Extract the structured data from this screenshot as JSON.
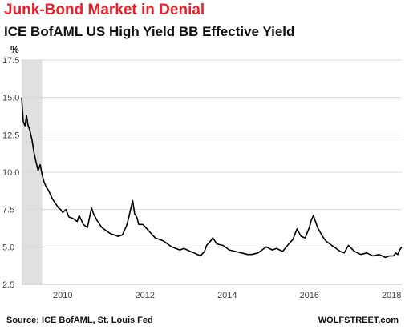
{
  "header": {
    "title": "Junk-Bond Market in Denial",
    "subtitle": "ICE BofAML US High Yield  BB  Effective Yield"
  },
  "footer": {
    "source": "Source: ICE BofAML, St. Louis Fed",
    "brand": "WOLFSTREET.com"
  },
  "colors": {
    "title": "#e8202a",
    "line": "#000000",
    "recession": "#e0e0e0",
    "grid": "#d9d9d9"
  },
  "chart_data": {
    "type": "line",
    "title": "Junk-Bond Market in Denial",
    "subtitle": "ICE BofAML US High Yield  BB  Effective Yield",
    "ylabel": "%",
    "xlabel": "",
    "x_unit": "year",
    "xlim": [
      2009.0,
      2018.25
    ],
    "ylim": [
      2.5,
      17.5
    ],
    "xticks": [
      "2010",
      "2012",
      "2014",
      "2016",
      "2018"
    ],
    "yticks": [
      "2.5",
      "5.0",
      "7.5",
      "10.0",
      "12.5",
      "15.0",
      "17.5"
    ],
    "grid": "horizontal",
    "recession_band": [
      2009.0,
      2009.5
    ],
    "series": [
      {
        "x": [
          2009.0,
          2009.04,
          2009.08,
          2009.12,
          2009.15,
          2009.2,
          2009.25,
          2009.3,
          2009.35,
          2009.4,
          2009.45,
          2009.5,
          2009.55,
          2009.6,
          2009.65,
          2009.7,
          2009.75,
          2009.8,
          2009.85,
          2009.9,
          2009.95,
          2010.0,
          2010.08,
          2010.15,
          2010.25,
          2010.35,
          2010.4,
          2010.5,
          2010.6,
          2010.7,
          2010.75,
          2010.85,
          2010.95,
          2011.05,
          2011.15,
          2011.25,
          2011.35,
          2011.45,
          2011.55,
          2011.6,
          2011.65,
          2011.7,
          2011.75,
          2011.8,
          2011.85,
          2011.95,
          2012.05,
          2012.15,
          2012.25,
          2012.35,
          2012.45,
          2012.55,
          2012.65,
          2012.75,
          2012.85,
          2012.95,
          2013.1,
          2013.2,
          2013.35,
          2013.45,
          2013.5,
          2013.6,
          2013.65,
          2013.75,
          2013.9,
          2014.05,
          2014.2,
          2014.35,
          2014.5,
          2014.6,
          2014.75,
          2014.85,
          2014.95,
          2015.1,
          2015.2,
          2015.35,
          2015.5,
          2015.6,
          2015.7,
          2015.8,
          2015.9,
          2016.0,
          2016.05,
          2016.1,
          2016.15,
          2016.2,
          2016.3,
          2016.4,
          2016.5,
          2016.6,
          2016.75,
          2016.85,
          2016.95,
          2017.1,
          2017.25,
          2017.4,
          2017.55,
          2017.7,
          2017.85,
          2017.95,
          2018.05,
          2018.1,
          2018.15,
          2018.2,
          2018.25
        ],
        "values": [
          15.0,
          13.4,
          13.1,
          13.8,
          13.2,
          12.8,
          12.2,
          11.3,
          10.7,
          10.1,
          10.5,
          9.8,
          9.3,
          9.0,
          8.8,
          8.5,
          8.2,
          8.0,
          7.8,
          7.6,
          7.5,
          7.3,
          7.5,
          7.0,
          6.9,
          6.7,
          7.1,
          6.5,
          6.3,
          7.6,
          7.2,
          6.7,
          6.3,
          6.1,
          5.9,
          5.8,
          5.7,
          5.8,
          6.4,
          6.9,
          7.5,
          8.1,
          7.2,
          7.0,
          6.5,
          6.5,
          6.2,
          5.9,
          5.6,
          5.5,
          5.4,
          5.2,
          5.0,
          4.9,
          4.8,
          4.9,
          4.7,
          4.6,
          4.4,
          4.7,
          5.1,
          5.4,
          5.6,
          5.2,
          5.1,
          4.8,
          4.7,
          4.6,
          4.5,
          4.5,
          4.6,
          4.8,
          5.0,
          4.8,
          4.9,
          4.7,
          5.2,
          5.5,
          6.2,
          5.7,
          5.6,
          6.3,
          6.8,
          7.1,
          6.7,
          6.3,
          5.8,
          5.4,
          5.2,
          5.0,
          4.7,
          4.6,
          5.1,
          4.7,
          4.5,
          4.6,
          4.4,
          4.5,
          4.3,
          4.4,
          4.4,
          4.6,
          4.5,
          4.8,
          5.0
        ]
      }
    ]
  }
}
